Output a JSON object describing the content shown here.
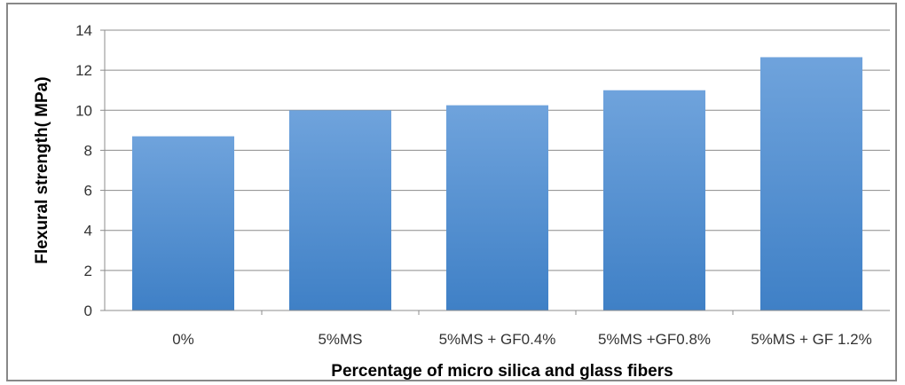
{
  "chart_data": {
    "type": "bar",
    "title": "",
    "xlabel": "Percentage of micro silica and glass fibers",
    "ylabel": "Flexural strength( MPa)",
    "categories": [
      "0%",
      "5%MS",
      "5%MS + GF0.4%",
      "5%MS +GF0.8%",
      "5%MS + GF 1.2%"
    ],
    "values": [
      8.7,
      10.0,
      10.25,
      11.0,
      12.65
    ],
    "ylim": [
      0,
      14
    ],
    "yticks": [
      0,
      2,
      4,
      6,
      8,
      10,
      12,
      14
    ],
    "grid": true,
    "legend": "none",
    "bar_color_top": "#6fa3dc",
    "bar_color_bottom": "#3f80c6"
  }
}
